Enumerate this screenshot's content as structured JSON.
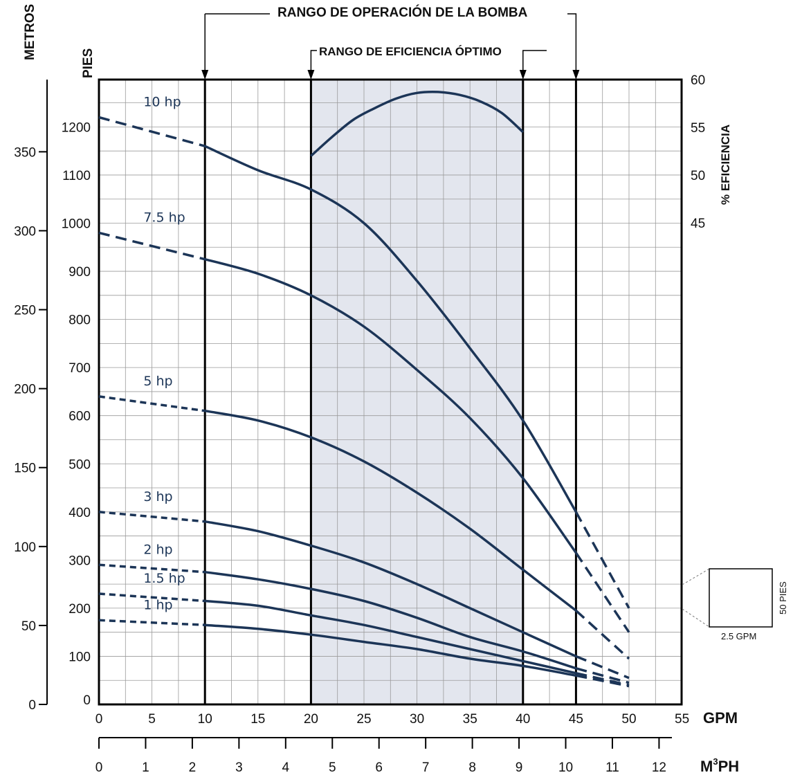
{
  "chart_data": {
    "type": "line",
    "titles": {
      "operating_range": "RANGO DE OPERACIÓN DE LA BOMBA",
      "optimal_range": "RANGO DE EFICIENCIA ÓPTIMO"
    },
    "axes": {
      "x_gpm": {
        "label": "GPM",
        "range": [
          0,
          55
        ],
        "ticks": [
          "0",
          "5",
          "10",
          "15",
          "20",
          "25",
          "30",
          "35",
          "40",
          "45",
          "50",
          "55"
        ]
      },
      "x_m3ph": {
        "label_main": "M",
        "label_sup": "3",
        "label_tail": "PH",
        "ticks": [
          "0",
          "1",
          "2",
          "3",
          "4",
          "5",
          "6",
          "7",
          "8",
          "9",
          "10",
          "11",
          "12"
        ]
      },
      "y_feet": {
        "label": "PIES",
        "range": [
          0,
          1300
        ],
        "ticks": [
          "0",
          "100",
          "200",
          "300",
          "400",
          "500",
          "600",
          "700",
          "800",
          "900",
          "1000",
          "1100",
          "1200"
        ]
      },
      "y_meters": {
        "label": "METROS",
        "ticks": [
          "0",
          "50",
          "100",
          "150",
          "200",
          "250",
          "300",
          "350"
        ]
      },
      "y_efficiency": {
        "label": "% EFICIENCIA",
        "range": [
          30,
          60
        ],
        "ticks": [
          "45",
          "50",
          "55",
          "60"
        ]
      },
      "grid": true
    },
    "operating_range_gpm": [
      10,
      45
    ],
    "optimal_range_gpm": [
      20,
      40
    ],
    "series": [
      {
        "name": "10 hp",
        "x": [
          0,
          10,
          15,
          20,
          25,
          30,
          35,
          40,
          45,
          50
        ],
        "y": [
          1220,
          1160,
          1110,
          1070,
          1000,
          880,
          740,
          590,
          400,
          200
        ],
        "dashed_until": 10,
        "dashed_from": 45
      },
      {
        "name": "7.5 hp",
        "x": [
          0,
          10,
          15,
          20,
          25,
          30,
          35,
          40,
          45,
          50
        ],
        "y": [
          980,
          925,
          895,
          850,
          785,
          695,
          595,
          470,
          315,
          150
        ],
        "dashed_until": 10,
        "dashed_from": 45
      },
      {
        "name": "5 hp",
        "x": [
          0,
          10,
          15,
          20,
          25,
          30,
          35,
          40,
          45,
          50
        ],
        "y": [
          640,
          610,
          590,
          555,
          505,
          440,
          365,
          280,
          195,
          95
        ],
        "dashed_until": 10,
        "dashed_from": 45
      },
      {
        "name": "3 hp",
        "x": [
          0,
          10,
          15,
          20,
          25,
          30,
          35,
          40,
          45,
          50
        ],
        "y": [
          400,
          380,
          360,
          330,
          295,
          250,
          200,
          150,
          100,
          55
        ],
        "dashed_until": 10,
        "dashed_from": 45
      },
      {
        "name": "2 hp",
        "x": [
          0,
          10,
          15,
          20,
          25,
          30,
          35,
          40,
          45,
          50
        ],
        "y": [
          290,
          275,
          260,
          240,
          215,
          180,
          140,
          110,
          75,
          45
        ],
        "dashed_until": 10,
        "dashed_from": 45
      },
      {
        "name": "1.5 hp",
        "x": [
          0,
          10,
          15,
          20,
          25,
          30,
          35,
          40,
          45,
          50
        ],
        "y": [
          230,
          215,
          205,
          185,
          165,
          140,
          115,
          90,
          65,
          40
        ],
        "dashed_until": 10,
        "dashed_from": 45
      },
      {
        "name": "1 hp",
        "x": [
          0,
          10,
          15,
          20,
          25,
          30,
          35,
          40,
          45,
          50
        ],
        "y": [
          175,
          165,
          157,
          145,
          130,
          115,
          95,
          80,
          60,
          38
        ],
        "dashed_until": 10,
        "dashed_from": 45
      }
    ],
    "efficiency_curve": {
      "x": [
        20,
        22,
        24,
        26,
        28,
        30,
        32,
        34,
        36,
        38,
        40
      ],
      "y": [
        52,
        54,
        55.8,
        57,
        58,
        58.6,
        58.7,
        58.4,
        57.7,
        56.5,
        54.5
      ]
    },
    "scale_box": {
      "width_label": "2.5 GPM",
      "height_label": "50 PIES"
    }
  }
}
